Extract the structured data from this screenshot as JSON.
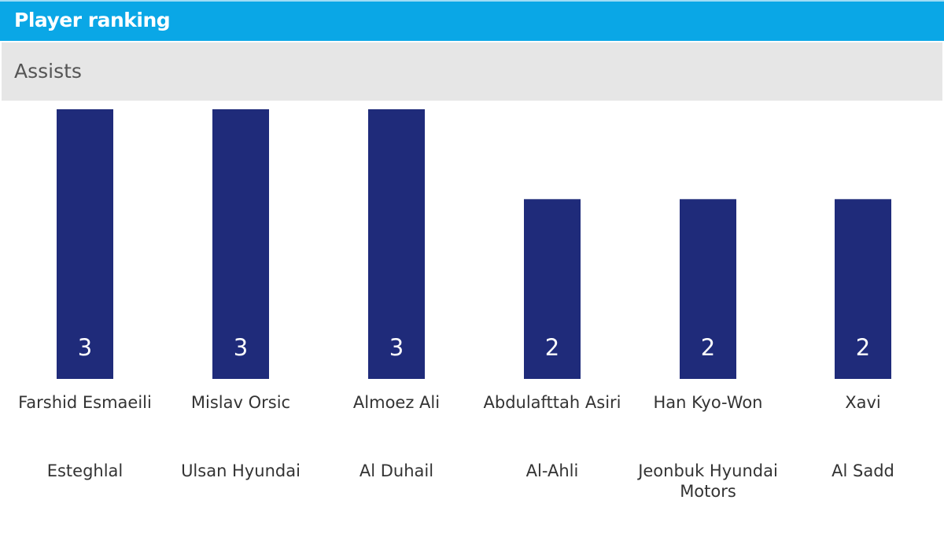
{
  "header": {
    "title": "Player ranking"
  },
  "subheader": {
    "title": "Assists"
  },
  "chart_data": {
    "type": "bar",
    "title": "Assists",
    "categories": [
      "Farshid Esmaeili",
      "Mislav Orsic",
      "Almoez Ali",
      "Abdulafttah Asiri",
      "Han Kyo-Won",
      "Xavi"
    ],
    "values": [
      3,
      3,
      3,
      2,
      2,
      2
    ],
    "teams": [
      "Esteghlal",
      "Ulsan Hyundai",
      "Al Duhail",
      "Al-Ahli",
      "Jeonbuk Hyundai Motors",
      "Al Sadd"
    ],
    "ylim": [
      0,
      3
    ],
    "bar_color": "#1f2b7a",
    "label_color": "#ffffff"
  }
}
